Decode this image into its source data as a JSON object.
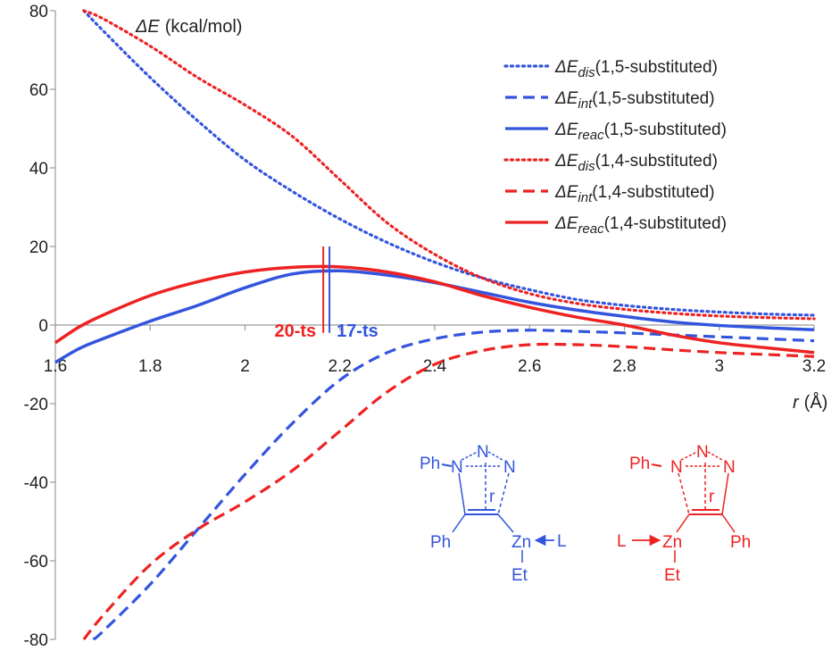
{
  "chart_data": {
    "type": "line",
    "ylabel_sym": "ΔE",
    "ylabel_unit": "(kcal/mol)",
    "xlabel_sym": "r",
    "xlabel_unit": "(Å)",
    "xlim": [
      1.6,
      3.2
    ],
    "ylim": [
      -80,
      80
    ],
    "xticks": [
      1.6,
      1.8,
      2,
      2.2,
      2.4,
      2.6,
      2.8,
      3,
      3.2
    ],
    "xtick_labels": [
      "1.6",
      "1.8",
      "2",
      "2.2",
      "2.4",
      "2.6",
      "2.8",
      "3",
      "3.2"
    ],
    "yticks": [
      -80,
      -60,
      -40,
      -20,
      0,
      20,
      40,
      60,
      80
    ],
    "ytick_labels": [
      "-80",
      "-60",
      "-40",
      "-20",
      "0",
      "20",
      "40",
      "60",
      "80"
    ],
    "series": [
      {
        "name": "ΔEdis(1,5-substituted)",
        "sym": "ΔE",
        "sub": "dis",
        "tail": "(1,5-substituted)",
        "color": "#3355dd",
        "style": "dotted",
        "x": [
          1.66,
          1.7,
          1.8,
          1.9,
          2.0,
          2.1,
          2.2,
          2.3,
          2.4,
          2.5,
          2.6,
          2.7,
          2.8,
          2.9,
          3.0,
          3.1,
          3.2
        ],
        "y": [
          80,
          75,
          63,
          52,
          42,
          34,
          27,
          21,
          16,
          12,
          9,
          6.5,
          5,
          4,
          3.3,
          2.8,
          2.5
        ]
      },
      {
        "name": "ΔEint(1,5-substituted)",
        "sym": "ΔE",
        "sub": "int",
        "tail": "(1,5-substituted)",
        "color": "#3355dd",
        "style": "dashed",
        "x": [
          1.68,
          1.7,
          1.8,
          1.9,
          2.0,
          2.1,
          2.2,
          2.3,
          2.4,
          2.5,
          2.6,
          2.7,
          2.8,
          2.9,
          3.0,
          3.1,
          3.2
        ],
        "y": [
          -80,
          -78,
          -66,
          -52,
          -38,
          -25,
          -14,
          -7,
          -3.5,
          -1.8,
          -1.3,
          -1.6,
          -2,
          -2.5,
          -3,
          -3.5,
          -4
        ]
      },
      {
        "name": "ΔEreac(1,5-substituted)",
        "sym": "ΔE",
        "sub": "reac",
        "tail": "(1,5-substituted)",
        "color": "#3355dd",
        "style": "solid",
        "x": [
          1.6,
          1.65,
          1.7,
          1.8,
          1.9,
          2.0,
          2.1,
          2.2,
          2.3,
          2.4,
          2.5,
          2.6,
          2.7,
          2.8,
          2.9,
          3.0,
          3.1,
          3.2
        ],
        "y": [
          -9.5,
          -6,
          -3.5,
          1,
          5,
          9.5,
          13,
          13.8,
          12.7,
          10.8,
          8.3,
          5.8,
          3.8,
          2.2,
          0.8,
          -0.1,
          -0.7,
          -1.2
        ]
      },
      {
        "name": "ΔEdis(1,4-substituted)",
        "sym": "ΔE",
        "sub": "dis",
        "tail": "(1,4-substituted)",
        "color": "#ee2222",
        "style": "dotted",
        "x": [
          1.66,
          1.7,
          1.8,
          1.9,
          2.0,
          2.1,
          2.2,
          2.3,
          2.4,
          2.5,
          2.6,
          2.7,
          2.8,
          2.9,
          3.0,
          3.1,
          3.2
        ],
        "y": [
          80,
          78,
          71,
          63,
          56,
          48,
          37,
          26,
          18,
          12,
          8,
          5.5,
          4,
          3,
          2.3,
          1.9,
          1.6
        ]
      },
      {
        "name": "ΔEint(1,4-substituted)",
        "sym": "ΔE",
        "sub": "int",
        "tail": "(1,4-substituted)",
        "color": "#ee2222",
        "style": "dashed",
        "x": [
          1.66,
          1.7,
          1.8,
          1.9,
          2.0,
          2.1,
          2.2,
          2.3,
          2.4,
          2.5,
          2.6,
          2.7,
          2.8,
          2.9,
          3.0,
          3.1,
          3.2
        ],
        "y": [
          -80,
          -74,
          -61,
          -52,
          -45,
          -37,
          -27,
          -17,
          -10,
          -6.5,
          -5,
          -5,
          -5.5,
          -6.3,
          -7,
          -7.5,
          -8
        ]
      },
      {
        "name": "ΔEreac(1,4-substituted)",
        "sym": "ΔE",
        "sub": "reac",
        "tail": "(1,4-substituted)",
        "color": "#ee2222",
        "style": "solid",
        "x": [
          1.6,
          1.65,
          1.7,
          1.8,
          1.9,
          2.0,
          2.1,
          2.2,
          2.3,
          2.4,
          2.5,
          2.6,
          2.7,
          2.8,
          2.9,
          3.0,
          3.1,
          3.2
        ],
        "y": [
          -4.5,
          -0.5,
          2.5,
          7.5,
          11,
          13.5,
          14.7,
          14.8,
          13.5,
          11,
          7.5,
          4.5,
          2,
          0,
          -2.5,
          -4.5,
          -5.8,
          -7
        ]
      }
    ],
    "annotations": [
      {
        "text": "20-ts",
        "x": 2.165,
        "color": "#ee2222",
        "side": "left"
      },
      {
        "text": "17-ts",
        "x": 2.178,
        "color": "#3355dd",
        "side": "right"
      }
    ],
    "legend_position": "top-right"
  },
  "molecules": {
    "blue": {
      "ph_n": "Ph",
      "n1": "N",
      "n2": "N",
      "n3": "N",
      "r": "r",
      "ph_c": "Ph",
      "zn": "Zn",
      "l": "L",
      "et": "Et",
      "color": "#3355dd"
    },
    "red": {
      "ph_n": "Ph",
      "n1": "N",
      "n2": "N",
      "n3": "N",
      "r": "r",
      "ph_c": "Ph",
      "zn": "Zn",
      "l": "L",
      "et": "Et",
      "color": "#ee2222"
    }
  }
}
